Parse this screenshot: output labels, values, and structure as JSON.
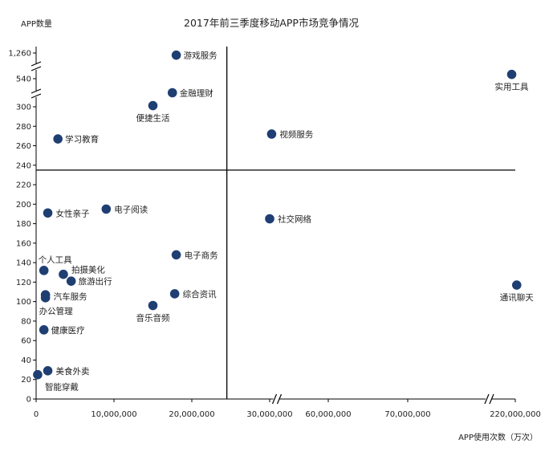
{
  "chart_data": {
    "type": "scatter",
    "title": "2017年前三季度移动APP市场竞争情况",
    "ylabel": "APP数量",
    "xlabel": "APP使用次数（万次）",
    "x_tick_labels": [
      "0",
      "10,000,000",
      "20,000,000",
      "30,000,000",
      "60,000,000",
      "70,000,000",
      "220,000,000"
    ],
    "y_tick_labels_lower": [
      "0",
      "20",
      "40",
      "60",
      "80",
      "100",
      "120",
      "140",
      "160",
      "180",
      "200",
      "220",
      "240",
      "260",
      "280",
      "300"
    ],
    "y_tick_labels_upper": [
      "540",
      "1,260"
    ],
    "x_axis_breaks": [
      "between 30,000,000 and 60,000,000",
      "between 70,000,000 and 220,000,000"
    ],
    "y_axis_break": "between 300 and 540",
    "reference_lines": {
      "x": 24500000,
      "y": 235
    },
    "grid": false,
    "legend": "none",
    "dot_color": "#1f3f73",
    "points": [
      {
        "name": "游戏服务",
        "x": 18000000,
        "y": 1200
      },
      {
        "name": "金融理财",
        "x": 17500000,
        "y": 420
      },
      {
        "name": "便捷生活",
        "x": 15000000,
        "y": 310
      },
      {
        "name": "学习教育",
        "x": 2800000,
        "y": 267
      },
      {
        "name": "实用工具",
        "x": 215000000,
        "y": 660
      },
      {
        "name": "视频服务",
        "x": 31000000,
        "y": 272
      },
      {
        "name": "女性亲子",
        "x": 1500000,
        "y": 191
      },
      {
        "name": "电子阅读",
        "x": 9000000,
        "y": 195
      },
      {
        "name": "社交网络",
        "x": 30000000,
        "y": 185
      },
      {
        "name": "电子商务",
        "x": 18000000,
        "y": 148
      },
      {
        "name": "个人工具",
        "x": 1000000,
        "y": 132
      },
      {
        "name": "拍摄美化",
        "x": 3500000,
        "y": 128
      },
      {
        "name": "旅游出行",
        "x": 4500000,
        "y": 121
      },
      {
        "name": "汽车服务",
        "x": 1200000,
        "y": 107
      },
      {
        "name": "办公管理",
        "x": 1200000,
        "y": 104
      },
      {
        "name": "综合资讯",
        "x": 17800000,
        "y": 108
      },
      {
        "name": "音乐音频",
        "x": 15000000,
        "y": 96
      },
      {
        "name": "通讯聊天",
        "x": 222000000,
        "y": 117
      },
      {
        "name": "健康医疗",
        "x": 1000000,
        "y": 71
      },
      {
        "name": "美食外卖",
        "x": 1500000,
        "y": 29
      },
      {
        "name": "智能穿戴",
        "x": 200000,
        "y": 25
      }
    ]
  }
}
